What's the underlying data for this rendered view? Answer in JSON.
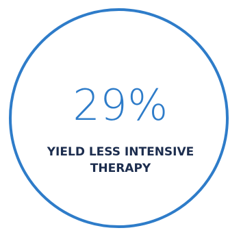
{
  "stat": {
    "value": "29%",
    "caption_line1": "YIELD LESS INTENSIVE",
    "caption_line2": "THERAPY"
  },
  "colors": {
    "accent": "#2e7cc9",
    "caption": "#1c2d4e",
    "background": "#ffffff"
  }
}
